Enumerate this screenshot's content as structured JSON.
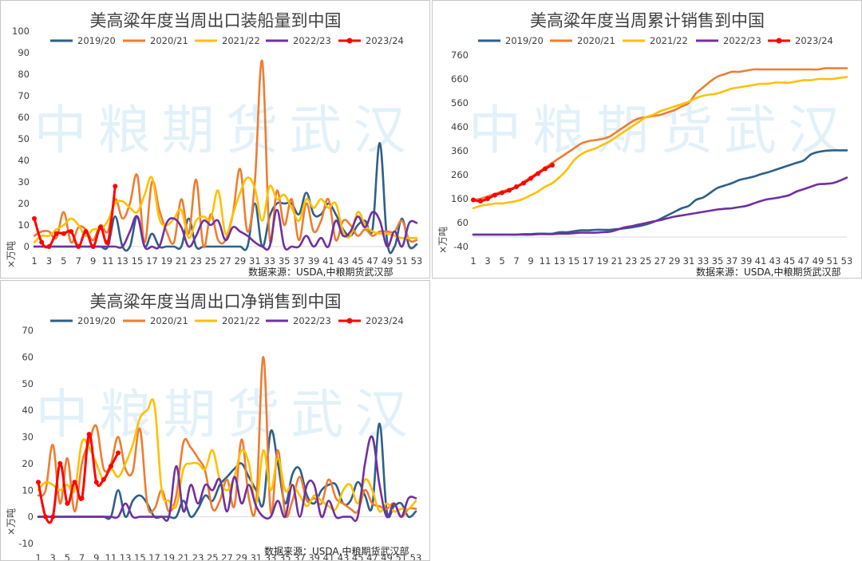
{
  "watermark": "中粮期货武汉",
  "series_colors": {
    "2019/20": "#2e5f8a",
    "2020/21": "#ed7d31",
    "2021/22": "#ffc000",
    "2022/23": "#7030a0",
    "2023/24": "#ff0000"
  },
  "chart_data": [
    {
      "id": "shipments",
      "type": "line",
      "title": "美高粱年度当周出口装船量到中国",
      "ylabel": "×万吨",
      "source": "数据来源：USDA,中粮期货武汉部",
      "ylim": [
        0,
        100
      ],
      "yticks": [
        "0",
        "10",
        "20",
        "30",
        "40",
        "50",
        "60",
        "70",
        "80",
        "90",
        "100"
      ],
      "xticks": [
        "1",
        "3",
        "5",
        "7",
        "9",
        "11",
        "13",
        "15",
        "17",
        "19",
        "21",
        "23",
        "25",
        "27",
        "29",
        "31",
        "33",
        "35",
        "37",
        "39",
        "41",
        "43",
        "45",
        "47",
        "49",
        "51",
        "53"
      ],
      "legend": [
        "2019/20",
        "2020/21",
        "2021/22",
        "2022/23",
        "2023/24"
      ],
      "series": [
        {
          "name": "2019/20",
          "values": [
            0,
            0,
            0,
            0,
            0,
            0,
            0,
            0,
            0,
            0,
            0,
            14,
            0,
            0,
            14,
            0,
            6,
            0,
            0,
            0,
            0,
            13,
            0,
            0,
            0,
            0,
            0,
            0,
            0,
            0,
            20,
            0,
            14,
            20,
            20,
            20,
            15,
            25,
            15,
            15,
            20,
            15,
            8,
            5,
            10,
            12,
            8,
            48,
            2,
            0,
            13,
            0,
            1
          ]
        },
        {
          "name": "2020/21",
          "values": [
            5,
            7,
            7,
            4,
            16,
            2,
            9,
            8,
            3,
            10,
            7,
            22,
            13,
            20,
            33,
            2,
            30,
            17,
            7,
            2,
            22,
            6,
            31,
            0,
            15,
            3,
            3,
            15,
            36,
            7,
            30,
            86,
            4,
            26,
            10,
            22,
            3,
            20,
            7,
            12,
            22,
            3,
            12,
            10,
            5,
            8,
            5,
            7,
            7,
            7,
            12,
            3,
            3
          ]
        },
        {
          "name": "2021/22",
          "values": [
            2,
            5,
            5,
            8,
            10,
            13,
            10,
            5,
            8,
            8,
            12,
            20,
            21,
            18,
            16,
            24,
            32,
            13,
            10,
            13,
            17,
            4,
            12,
            14,
            13,
            26,
            6,
            15,
            25,
            32,
            27,
            12,
            28,
            22,
            24,
            18,
            12,
            22,
            18,
            22,
            18,
            20,
            7,
            5,
            16,
            10,
            7,
            6,
            6,
            5,
            4,
            4,
            4
          ]
        },
        {
          "name": "2022/23",
          "values": [
            0,
            0,
            0,
            0,
            0,
            0,
            0,
            0,
            0,
            0,
            0,
            0,
            0,
            7,
            14,
            0,
            0,
            0,
            11,
            13,
            9,
            0,
            5,
            12,
            10,
            12,
            3,
            9,
            7,
            5,
            2,
            0,
            0,
            17,
            0,
            0,
            0,
            5,
            0,
            4,
            0,
            12,
            5,
            7,
            14,
            9,
            16,
            12,
            0,
            7,
            0,
            11,
            11
          ]
        },
        {
          "name": "2023/24",
          "values": [
            13,
            2,
            0,
            6,
            6,
            7,
            0,
            7,
            0,
            9,
            2,
            28
          ]
        }
      ]
    },
    {
      "id": "cumulative",
      "type": "line",
      "title": "美高粱年度当周累计销售到中国",
      "ylabel": "×万吨",
      "source": "数据来源：USDA,中粮期货武汉部",
      "ylim": [
        -40,
        760
      ],
      "yticks": [
        "-40",
        "60",
        "160",
        "260",
        "360",
        "460",
        "560",
        "660",
        "760"
      ],
      "xticks": [
        "1",
        "3",
        "5",
        "7",
        "9",
        "11",
        "13",
        "15",
        "17",
        "19",
        "21",
        "23",
        "25",
        "27",
        "29",
        "31",
        "33",
        "35",
        "37",
        "39",
        "41",
        "43",
        "45",
        "47",
        "49",
        "51",
        "53"
      ],
      "legend": [
        "2019/20",
        "2020/21",
        "2021/22",
        "2022/23",
        "2023/24"
      ],
      "series": [
        {
          "name": "2019/20",
          "values": [
            10,
            10,
            10,
            10,
            10,
            10,
            10,
            12,
            12,
            14,
            14,
            14,
            20,
            20,
            24,
            28,
            28,
            30,
            30,
            30,
            33,
            36,
            40,
            45,
            52,
            62,
            75,
            90,
            105,
            120,
            130,
            155,
            165,
            185,
            205,
            215,
            225,
            238,
            245,
            252,
            262,
            270,
            280,
            290,
            300,
            310,
            320,
            345,
            355,
            360,
            362,
            362,
            362
          ]
        },
        {
          "name": "2020/21",
          "values": [
            155,
            160,
            170,
            180,
            190,
            200,
            210,
            230,
            250,
            270,
            290,
            310,
            330,
            350,
            370,
            390,
            400,
            405,
            410,
            420,
            440,
            460,
            480,
            495,
            500,
            505,
            510,
            520,
            530,
            545,
            560,
            600,
            625,
            650,
            670,
            680,
            690,
            690,
            695,
            700,
            700,
            700,
            700,
            700,
            700,
            700,
            700,
            700,
            700,
            705,
            705,
            705,
            705
          ]
        },
        {
          "name": "2021/22",
          "values": [
            120,
            130,
            135,
            140,
            140,
            145,
            150,
            160,
            175,
            190,
            210,
            225,
            250,
            280,
            320,
            345,
            360,
            370,
            385,
            400,
            420,
            440,
            460,
            480,
            500,
            510,
            525,
            535,
            545,
            555,
            565,
            580,
            590,
            595,
            600,
            610,
            620,
            625,
            630,
            635,
            640,
            640,
            645,
            645,
            645,
            650,
            655,
            655,
            660,
            660,
            660,
            665,
            668
          ]
        },
        {
          "name": "2022/23",
          "values": [
            10,
            10,
            10,
            10,
            10,
            10,
            10,
            10,
            10,
            12,
            12,
            12,
            14,
            14,
            16,
            18,
            18,
            18,
            20,
            22,
            30,
            40,
            45,
            52,
            58,
            65,
            70,
            78,
            85,
            90,
            95,
            100,
            105,
            110,
            115,
            118,
            120,
            125,
            130,
            140,
            150,
            158,
            162,
            168,
            175,
            190,
            200,
            210,
            220,
            222,
            225,
            235,
            248
          ]
        },
        {
          "name": "2023/24",
          "values": [
            155,
            150,
            160,
            175,
            185,
            195,
            210,
            225,
            245,
            265,
            285,
            300
          ]
        }
      ]
    },
    {
      "id": "net_sales",
      "type": "line",
      "title": "美高粱年度当周出口净销售到中国",
      "ylabel": "×万吨",
      "source": "数据来源：USDA,中粮期货武汉部",
      "ylim": [
        -10,
        70
      ],
      "yticks": [
        "-10",
        "0",
        "10",
        "20",
        "30",
        "40",
        "50",
        "60",
        "70"
      ],
      "xticks": [
        "1",
        "3",
        "5",
        "7",
        "9",
        "11",
        "13",
        "15",
        "17",
        "19",
        "21",
        "23",
        "25",
        "27",
        "29",
        "31",
        "33",
        "35",
        "37",
        "39",
        "41",
        "43",
        "45",
        "47",
        "49",
        "51",
        "53"
      ],
      "legend": [
        "2019/20",
        "2020/21",
        "2021/22",
        "2022/23",
        "2023/24"
      ],
      "series": [
        {
          "name": "2019/20",
          "values": [
            0,
            0,
            0,
            0,
            0,
            0,
            0,
            0,
            0,
            0,
            0,
            10,
            0,
            6,
            8,
            5,
            0,
            0,
            0,
            0,
            6,
            0,
            3,
            8,
            6,
            12,
            15,
            18,
            20,
            15,
            10,
            5,
            32,
            20,
            5,
            16,
            18,
            8,
            5,
            10,
            12,
            12,
            5,
            6,
            13,
            8,
            4,
            35,
            2,
            4,
            5,
            0,
            2
          ]
        },
        {
          "name": "2020/21",
          "values": [
            8,
            10,
            27,
            5,
            22,
            2,
            20,
            28,
            34,
            18,
            20,
            30,
            18,
            17,
            33,
            5,
            3,
            10,
            2,
            8,
            28,
            26,
            22,
            17,
            3,
            6,
            14,
            4,
            29,
            7,
            5,
            60,
            2,
            25,
            1,
            6,
            15,
            6,
            7,
            5,
            14,
            7,
            5,
            3,
            2,
            10,
            5,
            4,
            3,
            5,
            0,
            3,
            3
          ]
        },
        {
          "name": "2021/22",
          "values": [
            10,
            13,
            12,
            10,
            12,
            10,
            28,
            26,
            20,
            14,
            18,
            15,
            20,
            27,
            37,
            40,
            42,
            10,
            6,
            4,
            18,
            20,
            20,
            18,
            25,
            14,
            10,
            15,
            25,
            20,
            5,
            25,
            10,
            22,
            10,
            12,
            8,
            4,
            8,
            6,
            4,
            3,
            10,
            12,
            5,
            14,
            10,
            2,
            5,
            2,
            3,
            3,
            6
          ]
        },
        {
          "name": "2022/23",
          "values": [
            0,
            0,
            0,
            0,
            0,
            0,
            0,
            0,
            0,
            0,
            0,
            0,
            5,
            0,
            0,
            0,
            0,
            0,
            0,
            19,
            2,
            12,
            5,
            12,
            10,
            14,
            2,
            15,
            5,
            12,
            4,
            0,
            0,
            6,
            0,
            12,
            0,
            12,
            12,
            0,
            6,
            0,
            0,
            0,
            0,
            20,
            30,
            12,
            0,
            5,
            0,
            7,
            7
          ]
        },
        {
          "name": "2023/24",
          "values": [
            13,
            0,
            0,
            20,
            5,
            13,
            7,
            31,
            13,
            14,
            19,
            24
          ]
        }
      ]
    }
  ]
}
